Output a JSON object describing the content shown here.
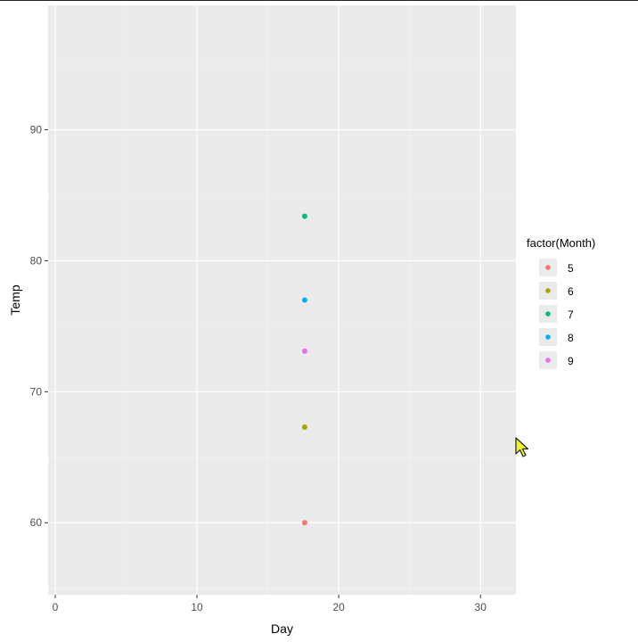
{
  "chart_data": {
    "type": "scatter",
    "title": "",
    "xlabel": "Day",
    "ylabel": "Temp",
    "xlim": [
      -0.5,
      32.5
    ],
    "ylim": [
      54.5,
      99.5
    ],
    "x_ticks": [
      0,
      10,
      20,
      30
    ],
    "y_ticks": [
      60,
      70,
      80,
      90
    ],
    "grid": true,
    "legend": {
      "title": "factor(Month)",
      "placement": "right",
      "entries": [
        "5",
        "6",
        "7",
        "8",
        "9"
      ]
    },
    "series": [
      {
        "name": "5",
        "color": "#F8766D",
        "points": [
          {
            "x": 17.6,
            "y": 60.0
          }
        ]
      },
      {
        "name": "6",
        "color": "#A3A500",
        "points": [
          {
            "x": 17.6,
            "y": 67.3
          }
        ]
      },
      {
        "name": "7",
        "color": "#00BF7D",
        "points": [
          {
            "x": 17.6,
            "y": 83.4
          }
        ]
      },
      {
        "name": "8",
        "color": "#00B0F6",
        "points": [
          {
            "x": 17.6,
            "y": 77.0
          }
        ]
      },
      {
        "name": "9",
        "color": "#E76BF3",
        "points": [
          {
            "x": 17.6,
            "y": 73.1
          }
        ]
      }
    ]
  }
}
